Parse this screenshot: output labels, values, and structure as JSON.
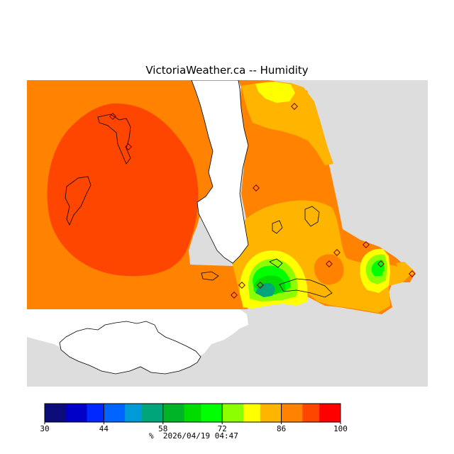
{
  "title": "VictoriaWeather.ca -- Humidity",
  "legend": {
    "unit": "%",
    "timestamp": "2026/04/19 04:47",
    "tick_labels": [
      "30",
      "44",
      "58",
      "72",
      "86",
      "100"
    ],
    "bins": [
      {
        "from": 30,
        "to": 35,
        "color": "#0b0b7a"
      },
      {
        "from": 35,
        "to": 40,
        "color": "#0000c8"
      },
      {
        "from": 40,
        "to": 44,
        "color": "#0028ff"
      },
      {
        "from": 44,
        "to": 49,
        "color": "#0064ff"
      },
      {
        "from": 49,
        "to": 53,
        "color": "#009bd6"
      },
      {
        "from": 53,
        "to": 58,
        "color": "#00a57a"
      },
      {
        "from": 58,
        "to": 63,
        "color": "#00b428"
      },
      {
        "from": 63,
        "to": 67,
        "color": "#00dc00"
      },
      {
        "from": 67,
        "to": 72,
        "color": "#00ff00"
      },
      {
        "from": 72,
        "to": 77,
        "color": "#8cff00"
      },
      {
        "from": 77,
        "to": 81,
        "color": "#ffff00"
      },
      {
        "from": 81,
        "to": 86,
        "color": "#ffb400"
      },
      {
        "from": 86,
        "to": 91,
        "color": "#ff8200"
      },
      {
        "from": 91,
        "to": 95,
        "color": "#ff4600"
      },
      {
        "from": 95,
        "to": 100,
        "color": "#ff0000"
      }
    ]
  },
  "colors": {
    "land_background": "#dddddd",
    "water": "#ffffff",
    "humidity_86_91": "#ff8200",
    "humidity_91_95": "#ff4600",
    "humidity_81_86": "#ffb400",
    "humidity_77_81": "#ffff00",
    "humidity_72_77": "#8cff00",
    "humidity_67_72": "#00ff00",
    "humidity_63_67": "#00dc00",
    "humidity_53_58": "#00a57a"
  }
}
